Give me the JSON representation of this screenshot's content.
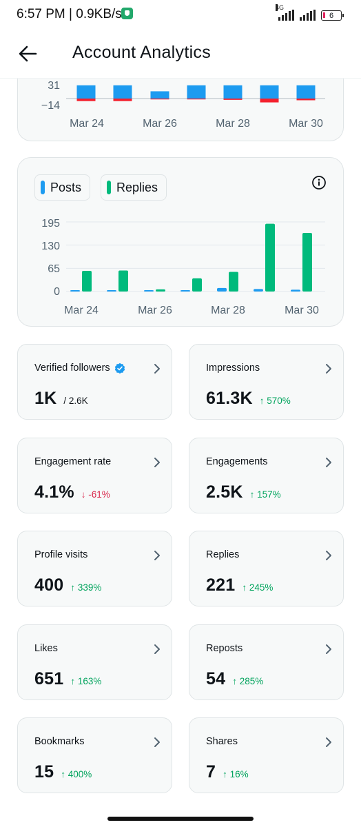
{
  "status_bar": {
    "time": "6:57 PM | 0.9KB/s",
    "network": "4G",
    "battery": "6"
  },
  "header": {
    "title": "Account Analytics",
    "back_icon": "arrow-left-icon"
  },
  "chart_top": {
    "y_ticks": [
      "31",
      "−14"
    ],
    "x_ticks": [
      "Mar 24",
      "Mar 26",
      "Mar 28",
      "Mar 30"
    ]
  },
  "chart_data": [
    {
      "type": "bar",
      "categories": [
        "Mar 24",
        "Mar 25",
        "Mar 26",
        "Mar 27",
        "Mar 28",
        "Mar 29",
        "Mar 30"
      ],
      "series": [
        {
          "values": [
            31,
            31,
            17,
            31,
            31,
            31,
            31
          ],
          "color": "#1d9bf0"
        },
        {
          "values": [
            -6,
            -6,
            -2,
            -2,
            -3,
            -9,
            -4
          ],
          "color": "#f4212e"
        }
      ],
      "y_ticks": [
        31,
        -14
      ],
      "ylim": [
        -14,
        31
      ],
      "grid": true
    },
    {
      "type": "bar",
      "categories": [
        "Mar 24",
        "Mar 25",
        "Mar 26",
        "Mar 27",
        "Mar 28",
        "Mar 29",
        "Mar 30"
      ],
      "series": [
        {
          "name": "Posts",
          "values": [
            2,
            2,
            1,
            2,
            10,
            7,
            5
          ],
          "color": "#1d9bf0"
        },
        {
          "name": "Replies",
          "values": [
            58,
            59,
            6,
            37,
            55,
            190,
            164
          ],
          "color": "#00ba7c"
        }
      ],
      "y_ticks": [
        0,
        65,
        130,
        195
      ],
      "ylim": [
        0,
        195
      ],
      "grid": true,
      "legend": "top-left"
    }
  ],
  "chart_bottom": {
    "legend": [
      "Posts",
      "Replies"
    ],
    "y_ticks": [
      "195",
      "130",
      "65",
      "0"
    ],
    "x_ticks": [
      "Mar 24",
      "Mar 26",
      "Mar 28",
      "Mar 30"
    ]
  },
  "stats": [
    {
      "label": "Verified followers",
      "value": "1K",
      "sub": "/ 2.6K",
      "change": "",
      "direction": "none",
      "verified_icon": "verified-badge-icon"
    },
    {
      "label": "Impressions",
      "value": "61.3K",
      "sub": "",
      "change": "↑ 570%",
      "direction": "up"
    },
    {
      "label": "Engagement rate",
      "value": "4.1%",
      "sub": "",
      "change": "↓ -61%",
      "direction": "down"
    },
    {
      "label": "Engagements",
      "value": "2.5K",
      "sub": "",
      "change": "↑ 157%",
      "direction": "up"
    },
    {
      "label": "Profile visits",
      "value": "400",
      "sub": "",
      "change": "↑ 339%",
      "direction": "up"
    },
    {
      "label": "Replies",
      "value": "221",
      "sub": "",
      "change": "↑ 245%",
      "direction": "up"
    },
    {
      "label": "Likes",
      "value": "651",
      "sub": "",
      "change": "↑ 163%",
      "direction": "up"
    },
    {
      "label": "Reposts",
      "value": "54",
      "sub": "",
      "change": "↑ 285%",
      "direction": "up"
    },
    {
      "label": "Bookmarks",
      "value": "15",
      "sub": "",
      "change": "↑ 400%",
      "direction": "up"
    },
    {
      "label": "Shares",
      "value": "7",
      "sub": "",
      "change": "↑ 16%",
      "direction": "up"
    }
  ]
}
